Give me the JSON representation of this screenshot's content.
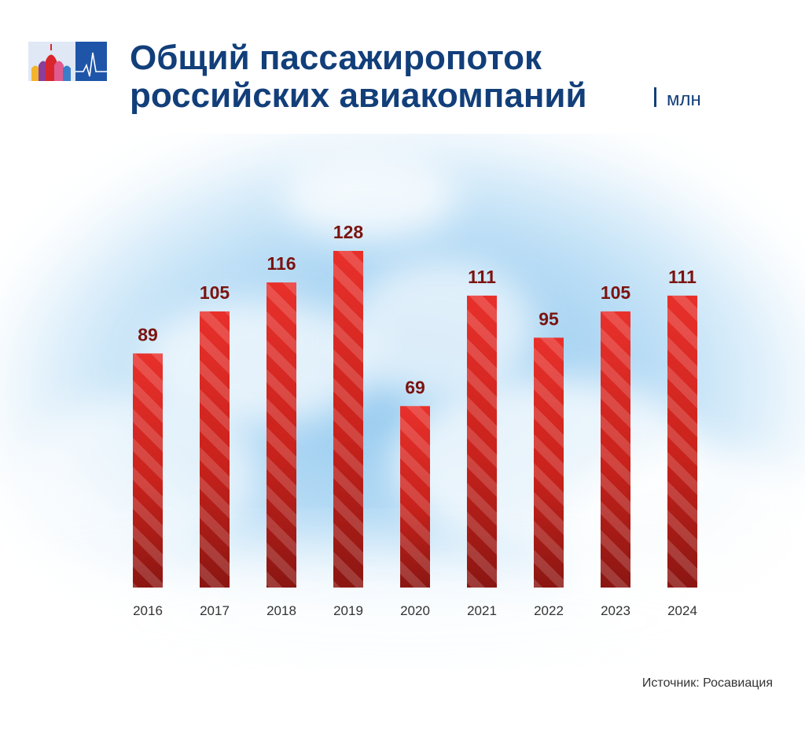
{
  "header": {
    "title_line1": "Общий пассажиропоток",
    "title_line2": "российских авиакомпаний",
    "unit": "млн"
  },
  "logo": {
    "icon": "kremlin-cathedral-logo-icon",
    "colors": [
      "#1e55a8",
      "#d9262c",
      "#f2b42c",
      "#8b3d9a"
    ]
  },
  "colors": {
    "title": "#123f7a",
    "bar_top": "#e8302b",
    "bar_bottom": "#8a1612",
    "value_label": "#7a1410",
    "axis_label": "#333333"
  },
  "chart_data": {
    "type": "bar",
    "title": "Общий пассажиропоток российских авиакомпаний",
    "unit": "млн",
    "xlabel": "",
    "ylabel": "",
    "categories": [
      "2016",
      "2017",
      "2018",
      "2019",
      "2020",
      "2021",
      "2022",
      "2023",
      "2024"
    ],
    "values": [
      89,
      105,
      116,
      128,
      69,
      111,
      95,
      105,
      111
    ],
    "ylim": [
      0,
      128
    ],
    "grid": false,
    "legend": "none"
  },
  "footer": {
    "source_label": "Источник:",
    "source_name": "Росавиация"
  }
}
